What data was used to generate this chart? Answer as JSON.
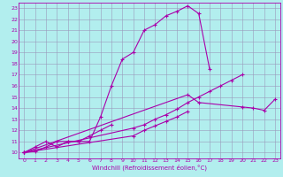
{
  "xlabel": "Windchill (Refroidissement éolien,°C)",
  "bg_color": "#b2eeee",
  "grid_color": "#9999bb",
  "line_color": "#aa00aa",
  "xlim": [
    -0.5,
    23.5
  ],
  "ylim": [
    9.5,
    23.5
  ],
  "xticks": [
    0,
    1,
    2,
    3,
    4,
    5,
    6,
    7,
    8,
    9,
    10,
    11,
    12,
    13,
    14,
    15,
    16,
    17,
    18,
    19,
    20,
    21,
    22,
    23
  ],
  "yticks": [
    10,
    11,
    12,
    13,
    14,
    15,
    16,
    17,
    18,
    19,
    20,
    21,
    22,
    23
  ],
  "series": [
    {
      "x": [
        0,
        1,
        2,
        3,
        4,
        5,
        6,
        7,
        8,
        9,
        10,
        11,
        12,
        13,
        14,
        15,
        16,
        17
      ],
      "y": [
        10.0,
        10.1,
        10.5,
        11.0,
        11.0,
        11.0,
        11.0,
        13.2,
        16.0,
        18.4,
        19.0,
        21.0,
        21.5,
        22.3,
        22.7,
        23.2,
        22.5,
        17.5
      ]
    },
    {
      "x": [
        0,
        1,
        2,
        3,
        4,
        5,
        6,
        7,
        8
      ],
      "y": [
        10.0,
        10.5,
        11.0,
        10.5,
        11.0,
        11.0,
        11.5,
        12.0,
        12.5
      ]
    },
    {
      "x": [
        0,
        10,
        11,
        12,
        13,
        14,
        15,
        16,
        17,
        18,
        19,
        20
      ],
      "y": [
        10.0,
        12.2,
        12.5,
        13.0,
        13.4,
        13.9,
        14.5,
        15.0,
        15.5,
        16.0,
        16.5,
        17.0
      ]
    },
    {
      "x": [
        0,
        10,
        11,
        12,
        13,
        14,
        15
      ],
      "y": [
        10.0,
        11.5,
        12.0,
        12.4,
        12.8,
        13.2,
        13.7
      ]
    },
    {
      "x": [
        0,
        15,
        16,
        20,
        21,
        22,
        23
      ],
      "y": [
        10.0,
        15.2,
        14.5,
        14.1,
        14.0,
        13.8,
        14.8
      ]
    }
  ]
}
